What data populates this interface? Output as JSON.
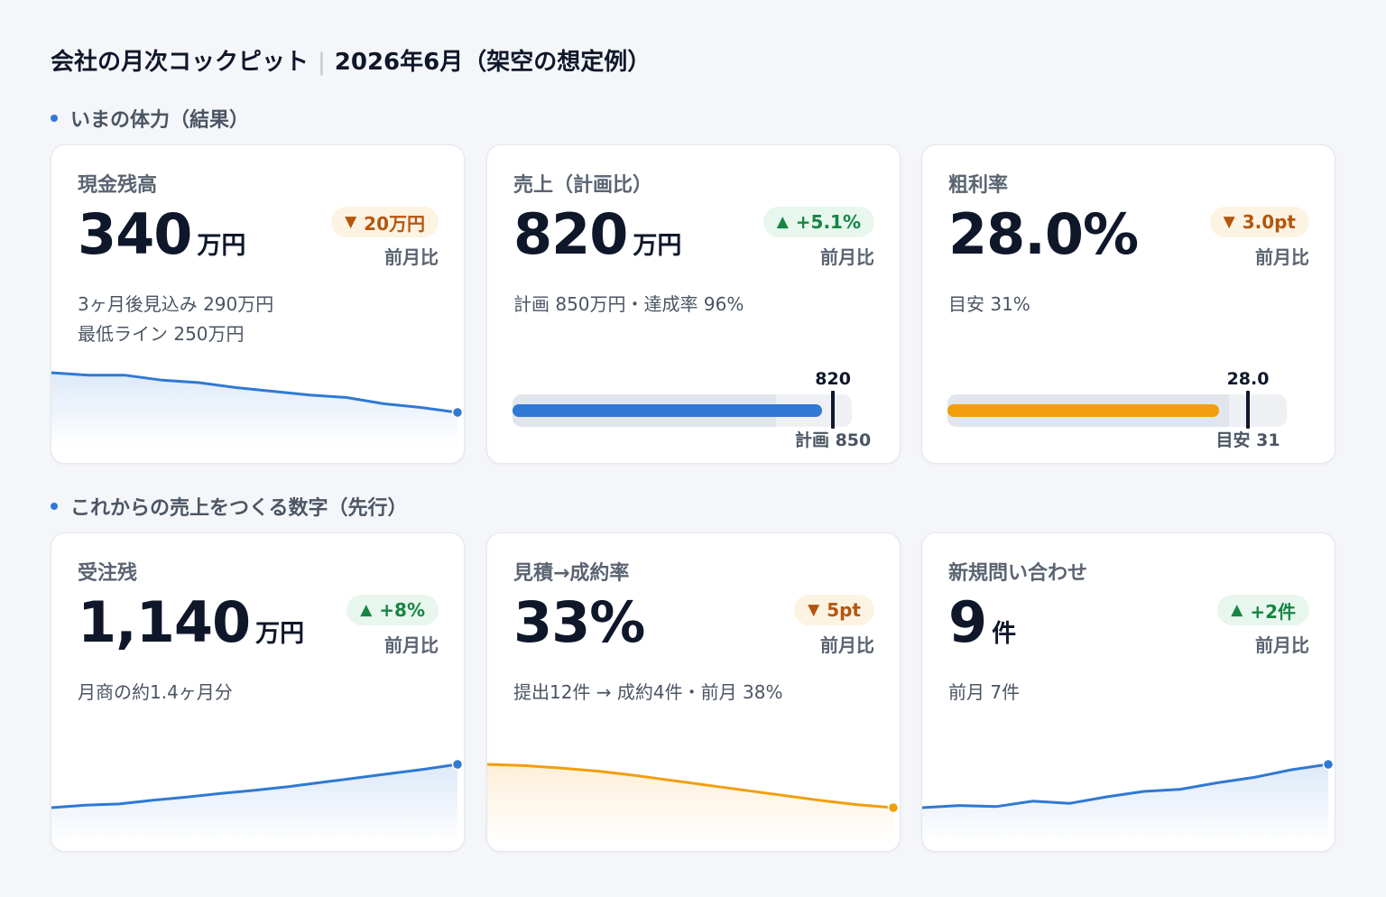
{
  "page": {
    "title": "会社の月次コックピット",
    "period": "2026年6月（架空の想定例）"
  },
  "sections": {
    "results": "いまの体力（結果）",
    "leading": "これからの売上をつくる数字（先行）"
  },
  "colors": {
    "accent_blue": "#2f79d4",
    "accent_orange": "#f29e0c",
    "up_green": "#178543",
    "down_orange": "#b5560d"
  },
  "cards": {
    "cash": {
      "label": "現金残高",
      "value": "340",
      "unit": "万円",
      "delta": "20万円",
      "delta_dir": "down",
      "delta_caption": "前月比",
      "note_1": "3ヶ月後見込み 290万円",
      "note_2": "最低ライン 250万円",
      "trend": [
        372,
        370,
        370,
        366,
        364,
        360,
        357,
        354,
        352,
        347,
        344,
        340
      ]
    },
    "sales": {
      "label": "売上（計画比）",
      "value": "820",
      "unit": "万円",
      "delta": "+5.1%",
      "delta_dir": "up",
      "delta_caption": "前月比",
      "note_1": "計画 850万円・達成率 96%",
      "actual": 820,
      "actual_label": "820",
      "target": 850,
      "target_label": "計画 850",
      "band": 700,
      "max": 900
    },
    "gross_margin": {
      "label": "粗利率",
      "value": "28.0%",
      "delta": "3.0pt",
      "delta_dir": "down",
      "delta_caption": "前月比",
      "note_1": "目安 31%",
      "actual": 28.0,
      "actual_label": "28.0",
      "target": 31,
      "target_label": "目安 31",
      "band": 29,
      "max": 35
    },
    "backlog": {
      "label": "受注残",
      "value": "1,140",
      "unit": "万円",
      "delta": "+8%",
      "delta_dir": "up",
      "delta_caption": "前月比",
      "note_1": "月商の約1.4ヶ月分",
      "trend": [
        1000,
        1008,
        1012,
        1024,
        1034,
        1046,
        1056,
        1068,
        1082,
        1096,
        1110,
        1124,
        1140
      ]
    },
    "conversion": {
      "label": "見積→成約率",
      "value": "33%",
      "delta": "5pt",
      "delta_dir": "down",
      "delta_caption": "前月比",
      "note_1": "提出12件 → 成約4件・前月 38%",
      "trend": [
        40,
        39.8,
        39.4,
        38.9,
        38.2,
        37.4,
        36.6,
        35.8,
        35,
        34.2,
        33.5,
        33
      ]
    },
    "inquiries": {
      "label": "新規問い合わせ",
      "value": "9",
      "unit": "件",
      "delta": "+2件",
      "delta_dir": "up",
      "delta_caption": "前月比",
      "note_1": "前月 7件",
      "trend": [
        5,
        5.2,
        5.1,
        5.6,
        5.4,
        6,
        6.5,
        6.7,
        7.3,
        7.8,
        8.5,
        9
      ]
    }
  }
}
